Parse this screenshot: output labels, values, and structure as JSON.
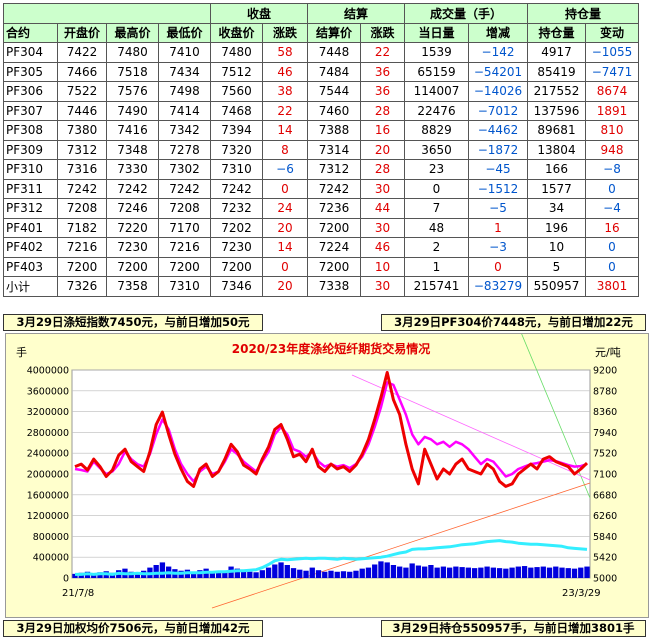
{
  "table": {
    "header_top": {
      "close": "收盘",
      "settle": "结算",
      "volume": "成交量（手）",
      "oi": "持仓量"
    },
    "header": [
      "合约",
      "开盘价",
      "最高价",
      "最低价",
      "收盘价",
      "涨跌",
      "结算价",
      "涨跌",
      "当日量",
      "增减",
      "持仓量",
      "变动"
    ],
    "rows": [
      [
        "PF304",
        "7422",
        "7480",
        "7410",
        "7480",
        "58",
        "7448",
        "22",
        "1539",
        "−142",
        "4917",
        "−1055"
      ],
      [
        "PF305",
        "7466",
        "7518",
        "7434",
        "7512",
        "46",
        "7484",
        "36",
        "65159",
        "−54201",
        "85419",
        "−7471"
      ],
      [
        "PF306",
        "7522",
        "7576",
        "7498",
        "7560",
        "38",
        "7544",
        "36",
        "114007",
        "−14026",
        "217552",
        "8674"
      ],
      [
        "PF307",
        "7446",
        "7490",
        "7414",
        "7468",
        "22",
        "7460",
        "28",
        "22476",
        "−7012",
        "137596",
        "1891"
      ],
      [
        "PF308",
        "7380",
        "7416",
        "7342",
        "7394",
        "14",
        "7388",
        "16",
        "8829",
        "−4462",
        "89681",
        "810"
      ],
      [
        "PF309",
        "7312",
        "7348",
        "7278",
        "7320",
        "8",
        "7314",
        "20",
        "3650",
        "−1872",
        "13804",
        "948"
      ],
      [
        "PF310",
        "7316",
        "7330",
        "7302",
        "7310",
        "−6",
        "7312",
        "28",
        "23",
        "−45",
        "166",
        "−8"
      ],
      [
        "PF311",
        "7242",
        "7242",
        "7242",
        "7242",
        "0",
        "7242",
        "30",
        "0",
        "−1512",
        "1577",
        "0"
      ],
      [
        "PF312",
        "7208",
        "7246",
        "7208",
        "7232",
        "24",
        "7236",
        "44",
        "7",
        "−5",
        "34",
        "−4"
      ],
      [
        "PF401",
        "7182",
        "7220",
        "7170",
        "7202",
        "20",
        "7200",
        "30",
        "48",
        "1",
        "196",
        "16"
      ],
      [
        "PF402",
        "7216",
        "7230",
        "7216",
        "7230",
        "14",
        "7224",
        "46",
        "2",
        "−3",
        "10",
        "0"
      ],
      [
        "PF403",
        "7200",
        "7200",
        "7200",
        "7200",
        "0",
        "7200",
        "10",
        "1",
        "0",
        "5",
        "0"
      ],
      [
        "小计",
        "7326",
        "7358",
        "7310",
        "7346",
        "20",
        "7338",
        "30",
        "215741",
        "−83279",
        "550957",
        "3801"
      ]
    ]
  },
  "notes": {
    "top_left": "3月29日涤短指数7450元，与前日增加50元",
    "top_right": "3月29日PF304价7448元，与前日增加22元",
    "bottom_left": "3月29日加权均价7506元，与前日增加42元",
    "bottom_right": "3月29日持仓550957手，与前日增加3801手"
  },
  "colors": {
    "up": "#e00000",
    "down": "#0055cc",
    "header_bg": "#ccffcc",
    "panel_bg": "#ffffcc",
    "price": "#ee0000",
    "index": "#ff00ff",
    "oi_line": "#33eeff",
    "volume_bar": "#0000dd"
  },
  "chart_data": {
    "type": "line",
    "title": "2020/23年度涤纶短纤期货交易情况",
    "ylabel_left": "手",
    "ylabel_right": "元/吨",
    "ylim_left": [
      0,
      4000000
    ],
    "ylim_right": [
      5000,
      9200
    ],
    "yticks_left": [
      "4000000",
      "3600000",
      "3200000",
      "2800000",
      "2400000",
      "2000000",
      "1600000",
      "1200000",
      "800000",
      "400000",
      "0"
    ],
    "yticks_right": [
      "9200",
      "8780",
      "8360",
      "7940",
      "7520",
      "7100",
      "6680",
      "6260",
      "5840",
      "5420",
      "5000"
    ],
    "x_start": "21/7/8",
    "x_end": "23/3/29",
    "series": [
      {
        "values": [
          7250,
          7300,
          7180,
          7400,
          7250,
          7050,
          7180,
          7480,
          7600,
          7350,
          7250,
          7150,
          7550,
          8100,
          8350,
          7900,
          7500,
          7200,
          6950,
          6850,
          7200,
          7300,
          7050,
          7150,
          7400,
          7700,
          7550,
          7280,
          7200,
          7100,
          7400,
          7650,
          8000,
          8100,
          7800,
          7450,
          7500,
          7350,
          7600,
          7250,
          7150,
          7300,
          7200,
          7250,
          7150,
          7280,
          7500,
          7800,
          8200,
          8650,
          9150,
          8600,
          8300,
          7700,
          7200,
          6900,
          7600,
          7300,
          7000,
          7200,
          7100,
          7300,
          7400,
          7200,
          7150,
          7100,
          7300,
          7200,
          6950,
          6850,
          6900,
          7100,
          7200,
          7300,
          7200,
          7400,
          7450,
          7350,
          7300,
          7250,
          7100,
          7200,
          7320
        ]
      },
      {
        "values": [
          7200,
          7180,
          7150,
          7350,
          7220,
          7100,
          7150,
          7300,
          7550,
          7400,
          7300,
          7250,
          7500,
          7900,
          8200,
          8000,
          7600,
          7300,
          7100,
          6950,
          7150,
          7250,
          7100,
          7150,
          7350,
          7600,
          7500,
          7350,
          7250,
          7150,
          7350,
          7550,
          7900,
          8050,
          7900,
          7600,
          7550,
          7450,
          7550,
          7350,
          7250,
          7300,
          7250,
          7280,
          7220,
          7300,
          7450,
          7700,
          8050,
          8450,
          8950,
          8900,
          8600,
          8300,
          7900,
          7700,
          7850,
          7800,
          7700,
          7750,
          7650,
          7750,
          7700,
          7600,
          7450,
          7300,
          7400,
          7350,
          7200,
          7050,
          7100,
          7200,
          7250,
          7300,
          7320,
          7350,
          7380,
          7360,
          7320,
          7280,
          7250,
          7260,
          7300
        ]
      },
      {
        "values": [
          0.07,
          0.07,
          0.08,
          0.07,
          0.08,
          0.08,
          0.07,
          0.09,
          0.08,
          0.08,
          0.09,
          0.08,
          0.08,
          0.09,
          0.09,
          0.1,
          0.09,
          0.09,
          0.1,
          0.1,
          0.1,
          0.11,
          0.11,
          0.12,
          0.12,
          0.13,
          0.14,
          0.14,
          0.15,
          0.16,
          0.2,
          0.26,
          0.33,
          0.36,
          0.35,
          0.36,
          0.37,
          0.38,
          0.37,
          0.38,
          0.38,
          0.37,
          0.36,
          0.38,
          0.37,
          0.36,
          0.37,
          0.38,
          0.39,
          0.4,
          0.42,
          0.45,
          0.48,
          0.5,
          0.55,
          0.56,
          0.56,
          0.57,
          0.58,
          0.59,
          0.6,
          0.62,
          0.64,
          0.65,
          0.66,
          0.68,
          0.7,
          0.71,
          0.72,
          0.7,
          0.69,
          0.67,
          0.66,
          0.65,
          0.65,
          0.64,
          0.63,
          0.62,
          0.61,
          0.58,
          0.57,
          0.56,
          0.55
        ]
      },
      {
        "values": [
          0.08,
          0.1,
          0.12,
          0.09,
          0.11,
          0.13,
          0.1,
          0.15,
          0.18,
          0.12,
          0.1,
          0.14,
          0.2,
          0.25,
          0.3,
          0.22,
          0.17,
          0.14,
          0.16,
          0.12,
          0.15,
          0.18,
          0.12,
          0.1,
          0.14,
          0.22,
          0.18,
          0.14,
          0.12,
          0.11,
          0.15,
          0.2,
          0.26,
          0.3,
          0.25,
          0.19,
          0.16,
          0.14,
          0.2,
          0.15,
          0.12,
          0.14,
          0.12,
          0.13,
          0.12,
          0.14,
          0.18,
          0.2,
          0.26,
          0.32,
          0.3,
          0.25,
          0.22,
          0.2,
          0.28,
          0.24,
          0.22,
          0.25,
          0.2,
          0.22,
          0.2,
          0.22,
          0.21,
          0.2,
          0.19,
          0.2,
          0.22,
          0.2,
          0.19,
          0.18,
          0.2,
          0.22,
          0.23,
          0.2,
          0.21,
          0.22,
          0.2,
          0.22,
          0.2,
          0.19,
          0.18,
          0.2,
          0.22
        ]
      }
    ]
  }
}
